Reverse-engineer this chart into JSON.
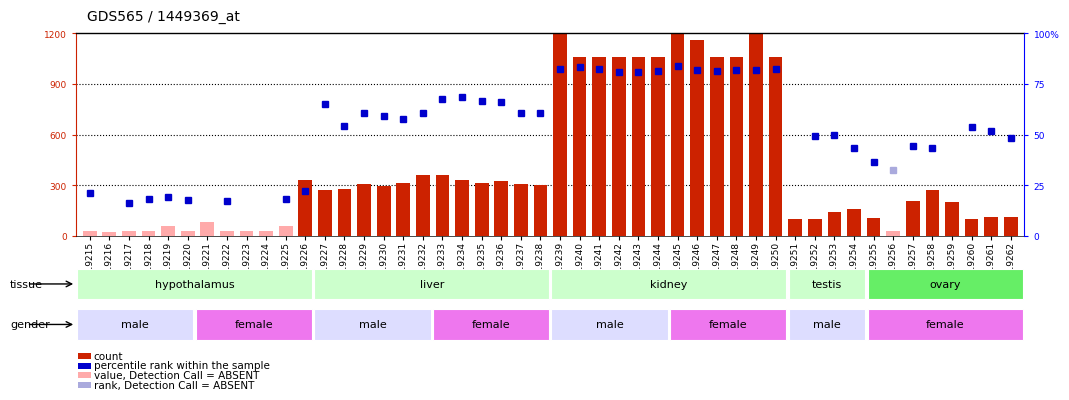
{
  "title": "GDS565 / 1449369_at",
  "samples": [
    "GSM19215",
    "GSM19216",
    "GSM19217",
    "GSM19218",
    "GSM19219",
    "GSM19220",
    "GSM19221",
    "GSM19222",
    "GSM19223",
    "GSM19224",
    "GSM19225",
    "GSM19226",
    "GSM19227",
    "GSM19228",
    "GSM19229",
    "GSM19230",
    "GSM19231",
    "GSM19232",
    "GSM19233",
    "GSM19234",
    "GSM19235",
    "GSM19236",
    "GSM19237",
    "GSM19238",
    "GSM19239",
    "GSM19240",
    "GSM19241",
    "GSM19242",
    "GSM19243",
    "GSM19244",
    "GSM19245",
    "GSM19246",
    "GSM19247",
    "GSM19248",
    "GSM19249",
    "GSM19250",
    "GSM19251",
    "GSM19252",
    "GSM19253",
    "GSM19254",
    "GSM19255",
    "GSM19256",
    "GSM19257",
    "GSM19258",
    "GSM19259",
    "GSM19260",
    "GSM19261",
    "GSM19262"
  ],
  "count": [
    30,
    25,
    30,
    30,
    60,
    30,
    80,
    30,
    30,
    30,
    55,
    330,
    270,
    280,
    305,
    295,
    310,
    360,
    360,
    330,
    310,
    325,
    305,
    300,
    1195,
    1060,
    1060,
    1060,
    1060,
    1060,
    1195,
    1160,
    1060,
    1060,
    1195,
    1060,
    100,
    100,
    140,
    160,
    105,
    30,
    205,
    270,
    200,
    100,
    110,
    110
  ],
  "count_absent": [
    true,
    true,
    true,
    true,
    true,
    true,
    true,
    true,
    true,
    true,
    true,
    false,
    false,
    false,
    false,
    false,
    false,
    false,
    false,
    false,
    false,
    false,
    false,
    false,
    false,
    false,
    false,
    false,
    false,
    false,
    false,
    false,
    false,
    false,
    false,
    false,
    false,
    false,
    false,
    false,
    false,
    true,
    false,
    false,
    false,
    false,
    false,
    false
  ],
  "percentile_rank": [
    255,
    null,
    195,
    215,
    230,
    210,
    null,
    205,
    null,
    null,
    220,
    265,
    780,
    650,
    730,
    710,
    690,
    730,
    810,
    820,
    800,
    795,
    730,
    730,
    990,
    1000,
    990,
    970,
    970,
    975,
    1005,
    985,
    975,
    985,
    985,
    990,
    null,
    590,
    600,
    520,
    440,
    390,
    530,
    520,
    null,
    645,
    620,
    580
  ],
  "rank_absent": [
    false,
    false,
    false,
    false,
    false,
    false,
    false,
    false,
    false,
    false,
    false,
    false,
    false,
    false,
    false,
    false,
    false,
    false,
    false,
    false,
    false,
    false,
    false,
    false,
    false,
    false,
    false,
    false,
    false,
    false,
    false,
    false,
    false,
    false,
    false,
    false,
    false,
    false,
    false,
    false,
    false,
    true,
    false,
    false,
    false,
    false,
    false,
    false
  ],
  "tissue_groups": [
    {
      "label": "hypothalamus",
      "start": 0,
      "end": 11,
      "color": "#ccffcc"
    },
    {
      "label": "liver",
      "start": 12,
      "end": 23,
      "color": "#ccffcc"
    },
    {
      "label": "kidney",
      "start": 24,
      "end": 35,
      "color": "#ccffcc"
    },
    {
      "label": "testis",
      "start": 36,
      "end": 39,
      "color": "#ccffcc"
    },
    {
      "label": "ovary",
      "start": 40,
      "end": 47,
      "color": "#66ee66"
    }
  ],
  "gender_groups": [
    {
      "label": "male",
      "start": 0,
      "end": 5,
      "color": "#ddddff"
    },
    {
      "label": "female",
      "start": 6,
      "end": 11,
      "color": "#ee77ee"
    },
    {
      "label": "male",
      "start": 12,
      "end": 17,
      "color": "#ddddff"
    },
    {
      "label": "female",
      "start": 18,
      "end": 23,
      "color": "#ee77ee"
    },
    {
      "label": "male",
      "start": 24,
      "end": 29,
      "color": "#ddddff"
    },
    {
      "label": "female",
      "start": 30,
      "end": 35,
      "color": "#ee77ee"
    },
    {
      "label": "male",
      "start": 36,
      "end": 39,
      "color": "#ddddff"
    },
    {
      "label": "female",
      "start": 40,
      "end": 47,
      "color": "#ee77ee"
    }
  ],
  "ylim_left": [
    0,
    1200
  ],
  "ylim_right": [
    0,
    100
  ],
  "yticks_left": [
    0,
    300,
    600,
    900,
    1200
  ],
  "yticks_right": [
    0,
    25,
    50,
    75,
    100
  ],
  "bar_color_present": "#cc2200",
  "bar_color_absent": "#ffaaaa",
  "dot_color_present": "#0000cc",
  "dot_color_absent": "#aaaadd",
  "background_color": "#ffffff",
  "title_fontsize": 10,
  "tick_fontsize": 6.5,
  "label_fontsize": 8,
  "legend_fontsize": 7.5
}
